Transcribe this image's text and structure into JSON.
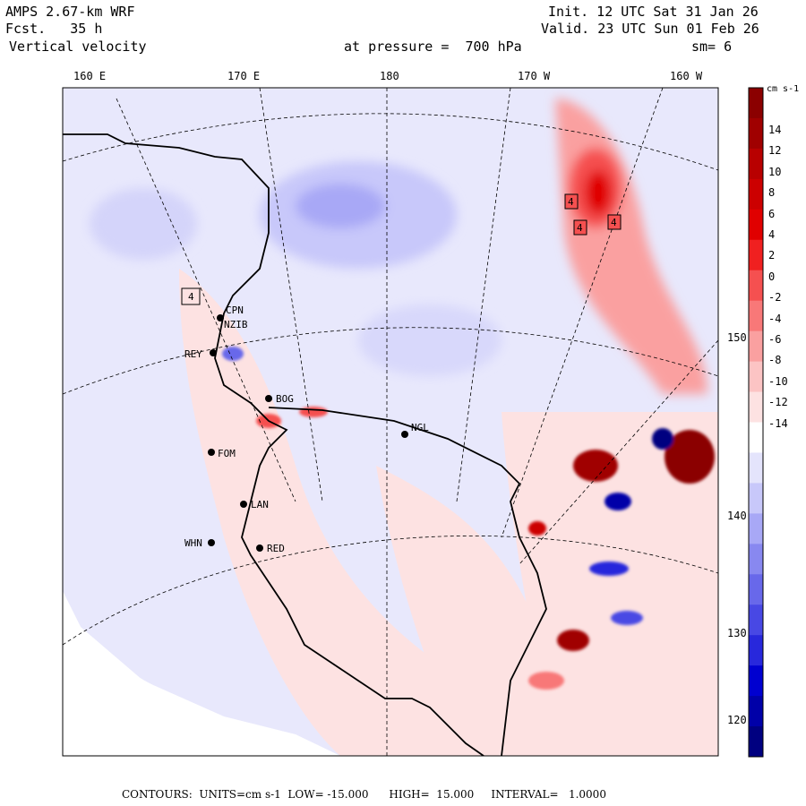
{
  "header": {
    "title": "AMPS 2.67-km WRF",
    "forecast_label": "Fcst.",
    "forecast_value": "35 h",
    "field": "Vertical velocity",
    "init": "Init. 12 UTC Sat 31 Jan 26",
    "valid": "Valid. 23 UTC Sun 01 Feb 26",
    "pressure_label": "at pressure =",
    "pressure_value": "700 hPa",
    "smoothing": "sm= 6"
  },
  "top_ticks": [
    "160 E",
    "170 E",
    "180",
    "170 W",
    "160 W"
  ],
  "right_ticks": [
    "150 W",
    "140 W",
    "130 W",
    "120 W"
  ],
  "stations": [
    "CPN",
    "NZIB",
    "REY",
    "BOG",
    "NGL",
    "FOM",
    "LAN",
    "WHN",
    "RED"
  ],
  "box_labels": [
    "4",
    "4",
    "4",
    "4"
  ],
  "colorbar": {
    "units": "cm s-1",
    "labels": [
      "14",
      "12",
      "10",
      "8",
      "6",
      "4",
      "2",
      "0",
      "-2",
      "-4",
      "-6",
      "-8",
      "-10",
      "-12",
      "-14"
    ],
    "colors": [
      "#8b0000",
      "#a00000",
      "#b80000",
      "#cc0000",
      "#e00000",
      "#f02020",
      "#f55050",
      "#f87878",
      "#faa0a0",
      "#fcc4c4",
      "#fde2e2",
      "#ffffff",
      "#e4e4fc",
      "#c8c8fa",
      "#a8a8f6",
      "#8888f0",
      "#6868ea",
      "#4848e4",
      "#2828dc",
      "#0000d0",
      "#0000a8",
      "#000080"
    ]
  },
  "footer": {
    "text": "CONTOURS:  UNITS=cm s-1  LOW= -15.000      HIGH=  15.000     INTERVAL=   1.0000"
  }
}
